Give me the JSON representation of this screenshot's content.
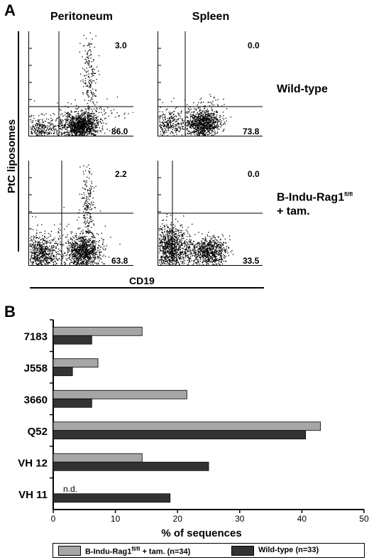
{
  "panel_a": {
    "letter": "A",
    "columns": [
      "Peritoneum",
      "Spleen"
    ],
    "rows": [
      {
        "label": "Wild-type",
        "label_sup": "",
        "label_line2": ""
      },
      {
        "label": "B-Indu-Rag1",
        "label_sup": "fl/fl",
        "label_line2": "+ tam."
      }
    ],
    "y_axis_title": "PtC liposomes",
    "x_axis_title": "CD19",
    "plots": [
      {
        "upper_right": "3.0",
        "lower_right": "86.0"
      },
      {
        "upper_right": "0.0",
        "lower_right": "73.8"
      },
      {
        "upper_right": "2.2",
        "lower_right": "63.8"
      },
      {
        "upper_right": "0.0",
        "lower_right": "33.5"
      }
    ],
    "colors": {
      "dots": "#000000"
    }
  },
  "chart_data": {
    "letter": "B",
    "type": "bar",
    "orientation": "horizontal",
    "categories": [
      "7183",
      "J558",
      "3660",
      "Q52",
      "VH 12",
      "VH 11"
    ],
    "series": [
      {
        "name": "B-Indu-Rag1",
        "name_sup": "fl/fl",
        "name_suffix": " + tam. (n=34)",
        "values": [
          14.3,
          7.2,
          21.5,
          43,
          14.3,
          null
        ],
        "color": "#a6a6a6"
      },
      {
        "name": "Wild-type (n=33)",
        "name_sup": "",
        "name_suffix": "",
        "values": [
          6.2,
          3.1,
          6.2,
          40.6,
          25,
          18.8
        ],
        "color": "#333333"
      }
    ],
    "annotations": [
      {
        "category": "VH 11",
        "series": "B-Indu-Rag1",
        "text": "n.d."
      }
    ],
    "xlabel": "% of sequences",
    "xlim": [
      0,
      50
    ],
    "xticks": [
      0,
      10,
      20,
      30,
      40,
      50
    ],
    "grid": false,
    "legend_position": "bottom"
  }
}
